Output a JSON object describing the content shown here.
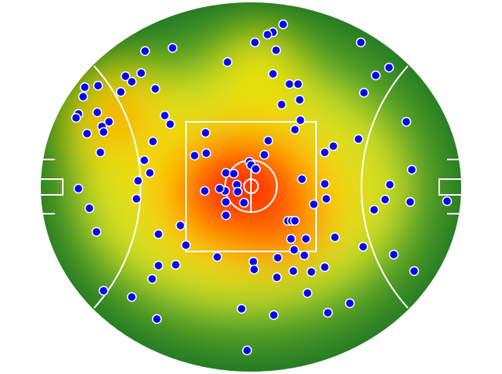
{
  "chart_data": {
    "type": "scatter",
    "color": "#0000ff",
    "xlim": [
      0,
      536
    ],
    "ylim": [
      0,
      470
    ],
    "x": [
      309,
      296,
      289,
      273,
      300,
      408,
      168,
      133,
      238,
      444,
      427,
      296,
      108,
      128,
      116,
      73,
      56,
      54,
      102,
      146,
      317,
      328,
      330,
      412,
      307,
      72,
      48,
      45,
      87,
      78,
      59,
      80,
      158,
      165,
      331,
      324,
      466,
      405,
      373,
      362,
      143,
      76,
      290,
      285,
      196,
      211,
      132,
      139,
      210,
      266,
      268,
      274,
      236,
      246,
      250,
      235,
      209,
      228,
      251,
      259,
      236,
      236,
      124,
      122,
      48,
      62,
      333,
      362,
      445,
      473,
      439,
      425,
      471,
      518,
      364,
      348,
      315,
      320,
      324,
      178,
      71,
      150,
      185,
      319,
      338,
      375,
      411,
      323,
      336,
      302,
      271,
      225,
      172,
      150,
      272,
      322,
      345,
      362,
      450,
      476,
      142,
      301,
      80,
      116,
      340,
      394,
      366,
      256,
      297,
      148,
      263
    ],
    "values": [
      442,
      432,
      429,
      419,
      409,
      419,
      412,
      408,
      394,
      387,
      377,
      379,
      376,
      380,
      369,
      364,
      362,
      350,
      356,
      360,
      366,
      366,
      346,
      355,
      340,
      330,
      328,
      323,
      318,
      312,
      303,
      305,
      326,
      315,
      320,
      308,
      318,
      296,
      287,
      279,
      293,
      279,
      294,
      276,
      275,
      278,
      269,
      253,
      304,
      267,
      263,
      258,
      253,
      252,
      238,
      230,
      230,
      233,
      229,
      215,
      216,
      199,
      243,
      220,
      233,
      208,
      245,
      239,
      238,
      257,
      219,
      206,
      216,
      217,
      220,
      213,
      192,
      192,
      192,
      186,
      178,
      175,
      161,
      169,
      169,
      171,
      159,
      155,
      148,
      145,
      140,
      146,
      136,
      135,
      130,
      128,
      127,
      133,
      149,
      128,
      118,
      120,
      103,
      95,
      100,
      87,
      75,
      80,
      72,
      67,
      27
    ]
  }
}
